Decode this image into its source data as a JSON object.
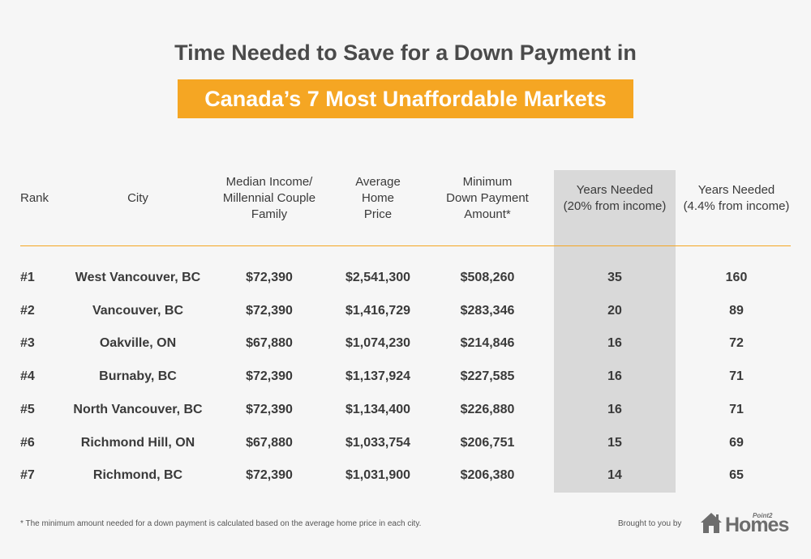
{
  "title": "Time Needed to Save for a Down Payment in",
  "banner": "Canada’s 7 Most Unaffordable Markets",
  "colors": {
    "accent": "#f5a623",
    "highlight": "#d9d9d9"
  },
  "headers": {
    "rank": "Rank",
    "city": "City",
    "income": [
      "Median Income/",
      "Millennial Couple",
      "Family"
    ],
    "price": [
      "Average",
      "Home",
      "Price"
    ],
    "down": [
      "Minimum",
      "Down Payment",
      "Amount*"
    ],
    "y20": [
      "Years Needed",
      "(20% from income)"
    ],
    "y44": [
      "Years Needed",
      "(4.4% from income)"
    ]
  },
  "rows": [
    {
      "rank": "#1",
      "city": "West Vancouver, BC",
      "income": "$72,390",
      "price": "$2,541,300",
      "down": "$508,260",
      "y20": "35",
      "y44": "160"
    },
    {
      "rank": "#2",
      "city": "Vancouver, BC",
      "income": "$72,390",
      "price": "$1,416,729",
      "down": "$283,346",
      "y20": "20",
      "y44": "89"
    },
    {
      "rank": "#3",
      "city": "Oakville, ON",
      "income": "$67,880",
      "price": "$1,074,230",
      "down": "$214,846",
      "y20": "16",
      "y44": "72"
    },
    {
      "rank": "#4",
      "city": "Burnaby, BC",
      "income": "$72,390",
      "price": "$1,137,924",
      "down": "$227,585",
      "y20": "16",
      "y44": "71"
    },
    {
      "rank": "#5",
      "city": "North Vancouver, BC",
      "income": "$72,390",
      "price": "$1,134,400",
      "down": "$226,880",
      "y20": "16",
      "y44": "71"
    },
    {
      "rank": "#6",
      "city": "Richmond Hill, ON",
      "income": "$67,880",
      "price": "$1,033,754",
      "down": "$206,751",
      "y20": "15",
      "y44": "69"
    },
    {
      "rank": "#7",
      "city": "Richmond, BC",
      "income": "$72,390",
      "price": "$1,031,900",
      "down": "$206,380",
      "y20": "14",
      "y44": "65"
    }
  ],
  "footnote": "* The minimum amount needed for a down payment is calculated based on the average home price in each city.",
  "brought_by": "Brought to you by",
  "logo": {
    "small": "Point2",
    "main": "Homes",
    "icon": "house-icon"
  }
}
